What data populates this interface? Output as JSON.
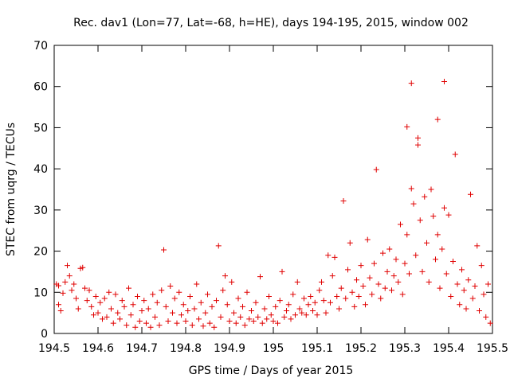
{
  "chart_data": {
    "type": "scatter",
    "title": "Rec. dav1 (Lon=77, Lat=-68, h=HE), days 194-195, 2015, window 002",
    "xlabel": "GPS time / Days of year 2015",
    "ylabel": "STEC from uqrg / TECUs",
    "xlim": [
      194.5,
      195.5
    ],
    "ylim": [
      0,
      70
    ],
    "x_ticks": [
      194.5,
      194.6,
      194.7,
      194.8,
      194.9,
      195.0,
      195.1,
      195.2,
      195.3,
      195.4,
      195.5
    ],
    "x_tick_labels": [
      "194.5",
      "194.6",
      "194.7",
      "194.8",
      "194.9",
      "195",
      "195.1",
      "195.2",
      "195.3",
      "195.4",
      "195.5"
    ],
    "y_ticks": [
      0,
      10,
      20,
      30,
      40,
      50,
      60,
      70
    ],
    "y_tick_labels": [
      "0",
      "10",
      "20",
      "30",
      "40",
      "50",
      "60",
      "70"
    ],
    "grid": false,
    "legend": "none",
    "marker": "+",
    "color": "#e00000",
    "series": [
      {
        "points": [
          [
            194.505,
            12.0
          ],
          [
            194.51,
            11.6
          ],
          [
            194.51,
            7.0
          ],
          [
            194.515,
            5.5
          ],
          [
            194.52,
            9.8
          ],
          [
            194.525,
            12.5
          ],
          [
            194.53,
            16.5
          ],
          [
            194.535,
            14.0
          ],
          [
            194.54,
            10.5
          ],
          [
            194.545,
            12.0
          ],
          [
            194.55,
            8.5
          ],
          [
            194.555,
            6.0
          ],
          [
            194.56,
            15.8
          ],
          [
            194.565,
            16.0
          ],
          [
            194.57,
            11.0
          ],
          [
            194.575,
            8.0
          ],
          [
            194.58,
            10.5
          ],
          [
            194.585,
            6.5
          ],
          [
            194.59,
            4.5
          ],
          [
            194.595,
            9.0
          ],
          [
            194.6,
            5.0
          ],
          [
            194.605,
            7.5
          ],
          [
            194.61,
            3.5
          ],
          [
            194.615,
            8.5
          ],
          [
            194.62,
            4.0
          ],
          [
            194.625,
            10.0
          ],
          [
            194.63,
            6.0
          ],
          [
            194.635,
            2.5
          ],
          [
            194.64,
            9.5
          ],
          [
            194.645,
            5.0
          ],
          [
            194.65,
            3.5
          ],
          [
            194.655,
            8.0
          ],
          [
            194.66,
            6.5
          ],
          [
            194.665,
            2.0
          ],
          [
            194.67,
            11.0
          ],
          [
            194.675,
            4.5
          ],
          [
            194.68,
            7.0
          ],
          [
            194.685,
            1.5
          ],
          [
            194.69,
            9.0
          ],
          [
            194.695,
            3.0
          ],
          [
            194.7,
            5.5
          ],
          [
            194.705,
            8.0
          ],
          [
            194.71,
            2.5
          ],
          [
            194.715,
            6.0
          ],
          [
            194.72,
            1.5
          ],
          [
            194.725,
            9.5
          ],
          [
            194.73,
            4.0
          ],
          [
            194.735,
            7.5
          ],
          [
            194.74,
            2.0
          ],
          [
            194.745,
            10.5
          ],
          [
            194.75,
            20.3
          ],
          [
            194.755,
            6.5
          ],
          [
            194.76,
            3.0
          ],
          [
            194.765,
            11.5
          ],
          [
            194.77,
            5.0
          ],
          [
            194.775,
            8.5
          ],
          [
            194.78,
            2.5
          ],
          [
            194.785,
            10.0
          ],
          [
            194.79,
            4.5
          ],
          [
            194.795,
            7.0
          ],
          [
            194.8,
            3.0
          ],
          [
            194.805,
            5.5
          ],
          [
            194.81,
            9.0
          ],
          [
            194.815,
            2.0
          ],
          [
            194.82,
            6.0
          ],
          [
            194.825,
            12.0
          ],
          [
            194.83,
            3.5
          ],
          [
            194.835,
            7.5
          ],
          [
            194.84,
            1.8
          ],
          [
            194.845,
            5.0
          ],
          [
            194.85,
            9.5
          ],
          [
            194.855,
            2.5
          ],
          [
            194.86,
            6.5
          ],
          [
            194.865,
            1.5
          ],
          [
            194.87,
            8.0
          ],
          [
            194.875,
            21.3
          ],
          [
            194.88,
            4.0
          ],
          [
            194.885,
            10.5
          ],
          [
            194.89,
            14.0
          ],
          [
            194.895,
            7.0
          ],
          [
            194.9,
            3.0
          ],
          [
            194.905,
            12.5
          ],
          [
            194.91,
            5.0
          ],
          [
            194.915,
            2.5
          ],
          [
            194.92,
            8.5
          ],
          [
            194.925,
            4.0
          ],
          [
            194.93,
            6.5
          ],
          [
            194.935,
            2.0
          ],
          [
            194.94,
            10.0
          ],
          [
            194.945,
            3.5
          ],
          [
            194.95,
            5.5
          ],
          [
            194.955,
            3.0
          ],
          [
            194.96,
            7.5
          ],
          [
            194.965,
            4.0
          ],
          [
            194.97,
            13.8
          ],
          [
            194.975,
            2.5
          ],
          [
            194.98,
            6.0
          ],
          [
            194.985,
            3.5
          ],
          [
            194.99,
            9.0
          ],
          [
            194.995,
            4.5
          ],
          [
            195.0,
            3.0
          ],
          [
            195.005,
            6.5
          ],
          [
            195.01,
            2.5
          ],
          [
            195.015,
            8.0
          ],
          [
            195.02,
            15.0
          ],
          [
            195.025,
            4.0
          ],
          [
            195.03,
            5.5
          ],
          [
            195.035,
            7.0
          ],
          [
            195.04,
            3.5
          ],
          [
            195.045,
            9.5
          ],
          [
            195.05,
            4.5
          ],
          [
            195.055,
            12.5
          ],
          [
            195.06,
            6.0
          ],
          [
            195.065,
            5.0
          ],
          [
            195.07,
            8.5
          ],
          [
            195.075,
            4.5
          ],
          [
            195.08,
            7.0
          ],
          [
            195.085,
            9.0
          ],
          [
            195.09,
            5.5
          ],
          [
            195.095,
            7.5
          ],
          [
            195.1,
            4.5
          ],
          [
            195.105,
            10.5
          ],
          [
            195.11,
            12.5
          ],
          [
            195.115,
            8.0
          ],
          [
            195.12,
            5.0
          ],
          [
            195.125,
            19.0
          ],
          [
            195.13,
            7.5
          ],
          [
            195.135,
            14.0
          ],
          [
            195.14,
            18.5
          ],
          [
            195.145,
            9.0
          ],
          [
            195.15,
            6.0
          ],
          [
            195.155,
            11.0
          ],
          [
            195.16,
            32.2
          ],
          [
            195.165,
            8.5
          ],
          [
            195.17,
            15.5
          ],
          [
            195.175,
            22.0
          ],
          [
            195.18,
            10.0
          ],
          [
            195.185,
            6.5
          ],
          [
            195.19,
            13.0
          ],
          [
            195.195,
            9.0
          ],
          [
            195.2,
            16.5
          ],
          [
            195.205,
            11.5
          ],
          [
            195.21,
            7.0
          ],
          [
            195.215,
            22.8
          ],
          [
            195.22,
            13.5
          ],
          [
            195.225,
            9.5
          ],
          [
            195.23,
            17.0
          ],
          [
            195.235,
            39.8
          ],
          [
            195.24,
            12.0
          ],
          [
            195.245,
            8.5
          ],
          [
            195.25,
            19.5
          ],
          [
            195.255,
            11.0
          ],
          [
            195.26,
            15.0
          ],
          [
            195.265,
            20.5
          ],
          [
            195.27,
            10.5
          ],
          [
            195.275,
            14.0
          ],
          [
            195.28,
            18.0
          ],
          [
            195.285,
            12.5
          ],
          [
            195.29,
            26.5
          ],
          [
            195.295,
            9.5
          ],
          [
            195.3,
            17.0
          ],
          [
            195.305,
            50.2
          ],
          [
            195.305,
            24.0
          ],
          [
            195.31,
            14.5
          ],
          [
            195.315,
            60.8
          ],
          [
            195.315,
            35.2
          ],
          [
            195.32,
            31.5
          ],
          [
            195.325,
            19.0
          ],
          [
            195.33,
            47.5
          ],
          [
            195.33,
            45.8
          ],
          [
            195.335,
            27.5
          ],
          [
            195.34,
            15.0
          ],
          [
            195.345,
            33.2
          ],
          [
            195.35,
            22.0
          ],
          [
            195.355,
            12.5
          ],
          [
            195.36,
            35.0
          ],
          [
            195.365,
            28.5
          ],
          [
            195.37,
            18.0
          ],
          [
            195.375,
            52.0
          ],
          [
            195.375,
            24.0
          ],
          [
            195.38,
            11.0
          ],
          [
            195.385,
            20.5
          ],
          [
            195.39,
            61.2
          ],
          [
            195.39,
            30.5
          ],
          [
            195.395,
            14.5
          ],
          [
            195.4,
            28.8
          ],
          [
            195.405,
            9.0
          ],
          [
            195.41,
            17.5
          ],
          [
            195.415,
            43.5
          ],
          [
            195.42,
            12.0
          ],
          [
            195.425,
            7.0
          ],
          [
            195.43,
            15.5
          ],
          [
            195.435,
            10.5
          ],
          [
            195.44,
            6.0
          ],
          [
            195.445,
            13.0
          ],
          [
            195.45,
            33.8
          ],
          [
            195.455,
            8.5
          ],
          [
            195.46,
            11.5
          ],
          [
            195.465,
            21.3
          ],
          [
            195.47,
            5.5
          ],
          [
            195.475,
            16.5
          ],
          [
            195.48,
            9.5
          ],
          [
            195.485,
            4.0
          ],
          [
            195.49,
            12.0
          ],
          [
            195.495,
            2.5
          ]
        ]
      }
    ]
  }
}
